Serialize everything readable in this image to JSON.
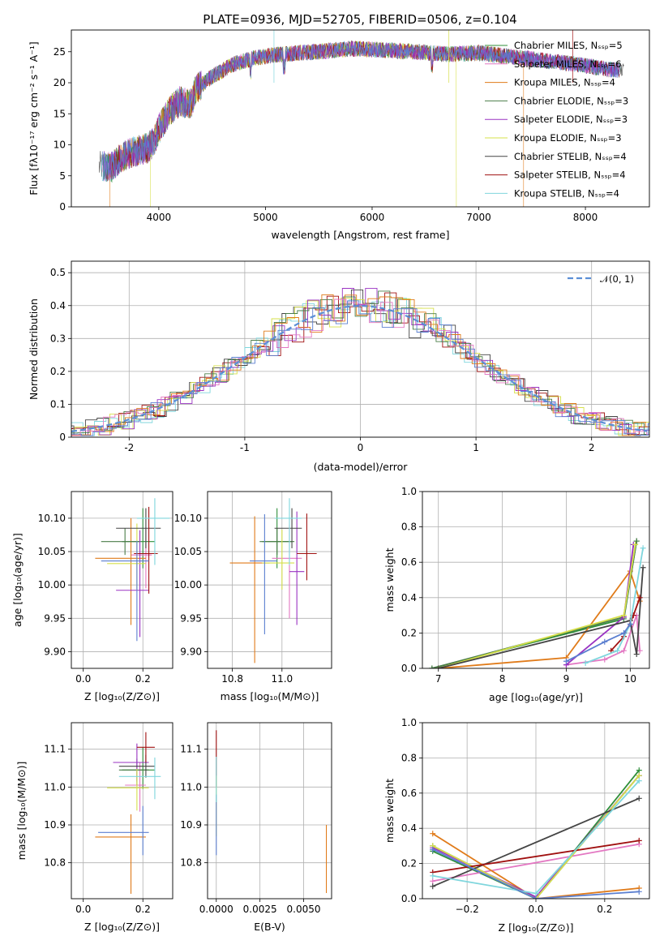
{
  "colors": {
    "Chabrier MILES": "#2f8f3a",
    "Salpeter MILES": "#e377c2",
    "Kroupa MILES": "#e07b1a",
    "Chabrier ELODIE": "#4a7d48",
    "Salpeter ELODIE": "#9a33c2",
    "Kroupa ELODIE": "#d6e04a",
    "Chabrier STELIB": "#444444",
    "Salpeter STELIB": "#a01010",
    "Kroupa STELIB": "#7fd6dd",
    "extra_blue": "#5b7fd0",
    "normal_fit": "#5b8fd6"
  },
  "chart_data": [
    {
      "id": "spectrum",
      "type": "line",
      "title": "PLATE=0936, MJD=52705, FIBERID=0506, z=0.104",
      "xlabel": "wavelength [Angstrom, rest frame]",
      "ylabel": "Flux [fλ10⁻¹⁷ erg cm⁻² s⁻¹ A⁻¹]",
      "xlim": [
        3180,
        8600
      ],
      "ylim": [
        0,
        28.5
      ],
      "xticks": [
        4000,
        5000,
        6000,
        7000,
        8000
      ],
      "yticks": [
        0,
        5,
        10,
        15,
        20,
        25
      ],
      "grid": false,
      "legend_position": "lower-right",
      "legend": [
        "Chabrier MILES, N_SSP=5",
        "Salpeter MILES, N_SSP=6",
        "Kroupa MILES, N_SSP=4",
        "Chabrier ELODIE, N_SSP=3",
        "Salpeter ELODIE, N_SSP=3",
        "Kroupa ELODIE, N_SSP=3",
        "Chabrier STELIB, N_SSP=4",
        "Salpeter STELIB, N_SSP=4",
        "Kroupa STELIB, N_SSP=4"
      ],
      "legend_display": [
        "Chabrier MILES, Nₛₛₚ=5",
        "Salpeter MILES, Nₛₛₚ=6",
        "Kroupa MILES, Nₛₛₚ=4",
        "Chabrier ELODIE, Nₛₛₚ=3",
        "Salpeter ELODIE, Nₛₛₚ=3",
        "Kroupa ELODIE, Nₛₛₚ=3",
        "Chabrier STELIB, Nₛₛₚ=4",
        "Salpeter STELIB, Nₛₛₚ=4",
        "Kroupa STELIB, Nₛₛₚ=4"
      ],
      "continuum_knots": {
        "x": [
          3460,
          3560,
          3640,
          3700,
          3760,
          3840,
          3900,
          3950,
          4000,
          4100,
          4200,
          4300,
          4350,
          4500,
          4700,
          4900,
          5100,
          5300,
          5500,
          5800,
          6100,
          6400,
          6700,
          7000,
          7300,
          7600,
          7900,
          8200,
          8360
        ],
        "y": [
          6.5,
          6.5,
          7.8,
          8.5,
          8.8,
          9.2,
          9.5,
          10.5,
          12.5,
          15.5,
          17.0,
          16.5,
          19.0,
          21.0,
          23.0,
          24.0,
          24.5,
          24.8,
          25.0,
          25.5,
          25.3,
          25.0,
          24.6,
          24.8,
          24.2,
          23.6,
          23.0,
          22.2,
          22.0
        ]
      }
    },
    {
      "id": "residual_histogram",
      "type": "line",
      "xlabel": "(data-model)/error",
      "ylabel": "Normed distribution",
      "xlim": [
        -2.5,
        2.5
      ],
      "ylim": [
        0,
        0.535
      ],
      "xticks": [
        -2,
        -1,
        0,
        1,
        2
      ],
      "yticks": [
        0.0,
        0.1,
        0.2,
        0.3,
        0.4,
        0.5
      ],
      "grid": true,
      "legend": [
        "𝒩(0, 1)"
      ],
      "legend_position": "upper-right",
      "normal_curve": {
        "mean": 0,
        "sigma": 1
      },
      "bin_width": 0.1,
      "series_peak_values": [
        0.5,
        0.51,
        0.49,
        0.48,
        0.47,
        0.46,
        0.51,
        0.45,
        0.49
      ]
    },
    {
      "id": "age_vs_Z",
      "type": "scatter",
      "xlabel": "Z [log₁₀(Z/Z⊙)]",
      "ylabel": "age  [log₁₀(age/yr)]",
      "xlim": [
        -0.04,
        0.3
      ],
      "ylim": [
        9.875,
        10.14
      ],
      "xticks": [
        "0.0",
        "0.2"
      ],
      "yticks": [
        "9.90",
        "9.95",
        "10.00",
        "10.05",
        "10.10"
      ],
      "grid": true,
      "points": [
        {
          "model": "Chabrier MILES",
          "x": 0.2,
          "y": 10.065,
          "xerr": [
            0.07,
            0.04
          ],
          "yerr": [
            0.04,
            0.05
          ]
        },
        {
          "model": "Salpeter MILES",
          "x": 0.21,
          "y": 10.045,
          "xerr": [
            0.05,
            0.02
          ],
          "yerr": [
            0.05,
            0.04
          ]
        },
        {
          "model": "Kroupa MILES",
          "x": 0.16,
          "y": 10.04,
          "xerr": [
            0.12,
            0.05
          ],
          "yerr": [
            0.1,
            0.06
          ]
        },
        {
          "model": "Chabrier ELODIE",
          "x": 0.14,
          "y": 10.065,
          "xerr": [
            0.08,
            0.05
          ],
          "yerr": [
            0.02,
            0.02
          ]
        },
        {
          "model": "Salpeter ELODIE",
          "x": 0.19,
          "y": 9.992,
          "xerr": [
            0.08,
            0.03
          ],
          "yerr": [
            0.07,
            0.09
          ]
        },
        {
          "model": "Kroupa ELODIE",
          "x": 0.18,
          "y": 10.032,
          "xerr": [
            0.1,
            0.03
          ],
          "yerr": [
            0.04,
            0.06
          ]
        },
        {
          "model": "Chabrier STELIB",
          "x": 0.21,
          "y": 10.085,
          "xerr": [
            0.1,
            0.05
          ],
          "yerr": [
            0.03,
            0.03
          ]
        },
        {
          "model": "Salpeter STELIB",
          "x": 0.22,
          "y": 10.047,
          "xerr": [
            0.05,
            0.03
          ],
          "yerr": [
            0.06,
            0.07
          ]
        },
        {
          "model": "Kroupa STELIB",
          "x": 0.24,
          "y": 10.1,
          "xerr": [
            0.06,
            0.05
          ],
          "yerr": [
            0.07,
            0.03
          ]
        },
        {
          "model": "extra_blue",
          "x": 0.18,
          "y": 10.036,
          "xerr": [
            0.12,
            0.04
          ],
          "yerr": [
            0.12,
            0.03
          ]
        }
      ]
    },
    {
      "id": "age_vs_mass",
      "type": "scatter",
      "xlabel": "mass [log₁₀(M/M⊙)]",
      "xlim": [
        10.7,
        11.2
      ],
      "ylim": [
        9.875,
        10.14
      ],
      "xticks": [
        "10.8",
        "11.0"
      ],
      "yticks": [
        "9.90",
        "9.95",
        "10.00",
        "10.05",
        "10.10"
      ],
      "grid": true,
      "points": [
        {
          "model": "Chabrier MILES",
          "x": 10.98,
          "y": 10.065,
          "xerr": [
            0.06,
            0.06
          ],
          "yerr": [
            0.04,
            0.05
          ]
        },
        {
          "model": "Salpeter MILES",
          "x": 11.03,
          "y": 10.04,
          "xerr": [
            0.07,
            0.05
          ],
          "yerr": [
            0.09,
            0.05
          ]
        },
        {
          "model": "Kroupa MILES",
          "x": 10.89,
          "y": 10.033,
          "xerr": [
            0.1,
            0.06
          ],
          "yerr": [
            0.15,
            0.07
          ]
        },
        {
          "model": "Chabrier ELODIE",
          "x": 10.98,
          "y": 10.065,
          "xerr": [
            0.07,
            0.07
          ],
          "yerr": [
            0.02,
            0.02
          ]
        },
        {
          "model": "Salpeter ELODIE",
          "x": 11.06,
          "y": 10.02,
          "xerr": [
            0.03,
            0.03
          ],
          "yerr": [
            0.08,
            0.09
          ]
        },
        {
          "model": "Kroupa ELODIE",
          "x": 11.0,
          "y": 10.033,
          "xerr": [
            0.08,
            0.05
          ],
          "yerr": [
            0.04,
            0.05
          ]
        },
        {
          "model": "Chabrier STELIB",
          "x": 11.04,
          "y": 10.085,
          "xerr": [
            0.07,
            0.04
          ],
          "yerr": [
            0.03,
            0.03
          ]
        },
        {
          "model": "Salpeter STELIB",
          "x": 11.1,
          "y": 10.047,
          "xerr": [
            0.04,
            0.04
          ],
          "yerr": [
            0.04,
            0.06
          ]
        },
        {
          "model": "Kroupa STELIB",
          "x": 11.03,
          "y": 10.1,
          "xerr": [
            0.06,
            0.05
          ],
          "yerr": [
            0.07,
            0.03
          ]
        },
        {
          "model": "extra_blue",
          "x": 10.93,
          "y": 10.036,
          "xerr": [
            0.06,
            0.05
          ],
          "yerr": [
            0.11,
            0.07
          ]
        }
      ]
    },
    {
      "id": "mass_weight_vs_age",
      "type": "line",
      "xlabel": "age  [log₁₀(age/yr)]",
      "ylabel": "mass weight",
      "xlim": [
        6.75,
        10.3
      ],
      "ylim": [
        0.0,
        1.0
      ],
      "xticks": [
        "7",
        "8",
        "9",
        "10"
      ],
      "yticks": [
        "0.0",
        "0.2",
        "0.4",
        "0.6",
        "0.8",
        "1.0"
      ],
      "grid": true,
      "series": [
        {
          "model": "Chabrier MILES",
          "x": [
            6.9,
            9.9,
            10.1
          ],
          "y": [
            0.0,
            0.28,
            0.72
          ]
        },
        {
          "model": "Salpeter MILES",
          "x": [
            9.0,
            9.6,
            9.9,
            10.1,
            10.15
          ],
          "y": [
            0.02,
            0.05,
            0.1,
            0.3,
            0.1
          ]
        },
        {
          "model": "Kroupa MILES",
          "x": [
            7.0,
            9.0,
            10.0,
            10.15
          ],
          "y": [
            0.0,
            0.06,
            0.55,
            0.38
          ]
        },
        {
          "model": "Chabrier ELODIE",
          "x": [
            6.9,
            9.9,
            10.1
          ],
          "y": [
            0.0,
            0.29,
            0.72
          ]
        },
        {
          "model": "Salpeter ELODIE",
          "x": [
            9.0,
            9.9,
            10.05
          ],
          "y": [
            0.02,
            0.29,
            0.7
          ]
        },
        {
          "model": "Kroupa ELODIE",
          "x": [
            7.0,
            9.9,
            10.08
          ],
          "y": [
            0.0,
            0.3,
            0.7
          ]
        },
        {
          "model": "Chabrier STELIB",
          "x": [
            7.0,
            10.0,
            10.1,
            10.2
          ],
          "y": [
            0.0,
            0.27,
            0.08,
            0.57
          ]
        },
        {
          "model": "Salpeter STELIB",
          "x": [
            9.7,
            9.9,
            10.05,
            10.15
          ],
          "y": [
            0.1,
            0.18,
            0.3,
            0.4
          ]
        },
        {
          "model": "Kroupa STELIB",
          "x": [
            9.3,
            9.8,
            10.0,
            10.2
          ],
          "y": [
            0.03,
            0.1,
            0.25,
            0.68
          ]
        },
        {
          "model": "extra_blue",
          "x": [
            9.0,
            9.6,
            9.9,
            10.0
          ],
          "y": [
            0.04,
            0.15,
            0.2,
            0.25
          ]
        }
      ]
    },
    {
      "id": "mass_vs_Z",
      "type": "scatter",
      "xlabel": "Z [log₁₀(Z/Z⊙)]",
      "ylabel": "mass [log₁₀(M/M⊙)]",
      "xlim": [
        -0.04,
        0.3
      ],
      "ylim": [
        10.705,
        11.17
      ],
      "xticks": [
        "0.0",
        "0.2"
      ],
      "yticks": [
        "10.8",
        "10.9",
        "11.0",
        "11.1"
      ],
      "grid": true,
      "points": [
        {
          "model": "Chabrier MILES",
          "x": 0.2,
          "y": 11.045,
          "xerr": [
            0.07,
            0.04
          ],
          "yerr": [
            0.05,
            0.06
          ]
        },
        {
          "model": "Salpeter MILES",
          "x": 0.19,
          "y": 11.005,
          "xerr": [
            0.05,
            0.02
          ],
          "yerr": [
            0.07,
            0.06
          ]
        },
        {
          "model": "Kroupa MILES",
          "x": 0.16,
          "y": 10.868,
          "xerr": [
            0.12,
            0.05
          ],
          "yerr": [
            0.15,
            0.06
          ]
        },
        {
          "model": "Chabrier ELODIE",
          "x": 0.18,
          "y": 11.045,
          "xerr": [
            0.06,
            0.04
          ],
          "yerr": [
            0.04,
            0.03
          ]
        },
        {
          "model": "Salpeter ELODIE",
          "x": 0.18,
          "y": 11.065,
          "xerr": [
            0.08,
            0.04
          ],
          "yerr": [
            0.05,
            0.05
          ]
        },
        {
          "model": "Kroupa ELODIE",
          "x": 0.18,
          "y": 10.998,
          "xerr": [
            0.1,
            0.04
          ],
          "yerr": [
            0.06,
            0.05
          ]
        },
        {
          "model": "Chabrier STELIB",
          "x": 0.21,
          "y": 11.055,
          "xerr": [
            0.09,
            0.03
          ],
          "yerr": [
            0.03,
            0.03
          ]
        },
        {
          "model": "Salpeter STELIB",
          "x": 0.21,
          "y": 11.105,
          "xerr": [
            0.03,
            0.03
          ],
          "yerr": [
            0.04,
            0.04
          ]
        },
        {
          "model": "Kroupa STELIB",
          "x": 0.24,
          "y": 11.028,
          "xerr": [
            0.12,
            0.02
          ],
          "yerr": [
            0.06,
            0.05
          ]
        },
        {
          "model": "extra_blue",
          "x": 0.2,
          "y": 10.88,
          "xerr": [
            0.15,
            0.02
          ],
          "yerr": [
            0.06,
            0.07
          ]
        }
      ]
    },
    {
      "id": "mass_vs_ebv",
      "type": "scatter",
      "xlabel": "E(B-V)",
      "xlim": [
        -0.0005,
        0.0066
      ],
      "ylim": [
        10.705,
        11.17
      ],
      "xticks": [
        "0.0000",
        "0.0025",
        "0.0050"
      ],
      "yticks": [
        "10.8",
        "10.9",
        "11.0",
        "11.1"
      ],
      "grid": true,
      "points": [
        {
          "model": "Salpeter STELIB",
          "x": 0.0,
          "y": 11.05,
          "xerr": [
            0,
            0
          ],
          "yerr": [
            0.05,
            0.1
          ]
        },
        {
          "model": "Kroupa ELODIE",
          "x": 0.0,
          "y": 10.95,
          "xerr": [
            0,
            0
          ],
          "yerr": [
            0.08,
            0.08
          ]
        },
        {
          "model": "extra_blue",
          "x": 0.0,
          "y": 10.88,
          "xerr": [
            0,
            0
          ],
          "yerr": [
            0.06,
            0.1
          ]
        },
        {
          "model": "Kroupa STELIB",
          "x": 0.0,
          "y": 11.03,
          "xerr": [
            0,
            0
          ],
          "yerr": [
            0.07,
            0.05
          ]
        },
        {
          "model": "Kroupa MILES",
          "x": 0.0063,
          "y": 10.81,
          "xerr": [
            0,
            0
          ],
          "yerr": [
            0.09,
            0.09
          ]
        }
      ]
    },
    {
      "id": "mass_weight_vs_Z",
      "type": "line",
      "xlabel": "Z [log₁₀(Z/Z⊙)]",
      "ylabel": "mass weight",
      "xlim": [
        -0.33,
        0.33
      ],
      "ylim": [
        0.0,
        1.0
      ],
      "xticks": [
        "−0.2",
        "0.0",
        "0.2"
      ],
      "yticks": [
        "0.0",
        "0.2",
        "0.4",
        "0.6",
        "0.8",
        "1.0"
      ],
      "grid": true,
      "series": [
        {
          "model": "Chabrier MILES",
          "x": [
            -0.3,
            0.0,
            0.3
          ],
          "y": [
            0.27,
            0.0,
            0.73
          ]
        },
        {
          "model": "Salpeter MILES",
          "x": [
            -0.3,
            0.3
          ],
          "y": [
            0.1,
            0.31
          ]
        },
        {
          "model": "Kroupa MILES",
          "x": [
            -0.3,
            0.0,
            0.3
          ],
          "y": [
            0.37,
            0.0,
            0.06
          ]
        },
        {
          "model": "Chabrier ELODIE",
          "x": [
            -0.3,
            0.0,
            0.3
          ],
          "y": [
            0.3,
            0.0,
            0.7
          ]
        },
        {
          "model": "Salpeter ELODIE",
          "x": [
            -0.3,
            0.0,
            0.3
          ],
          "y": [
            0.29,
            0.01,
            0.7
          ]
        },
        {
          "model": "Kroupa ELODIE",
          "x": [
            -0.3,
            0.0,
            0.3
          ],
          "y": [
            0.3,
            0.0,
            0.7
          ]
        },
        {
          "model": "Chabrier STELIB",
          "x": [
            -0.3,
            0.3
          ],
          "y": [
            0.07,
            0.57
          ]
        },
        {
          "model": "Salpeter STELIB",
          "x": [
            -0.3,
            0.3
          ],
          "y": [
            0.15,
            0.33
          ]
        },
        {
          "model": "Kroupa STELIB",
          "x": [
            -0.3,
            0.0,
            0.3
          ],
          "y": [
            0.13,
            0.03,
            0.67
          ]
        },
        {
          "model": "extra_blue",
          "x": [
            -0.3,
            0.0,
            0.3
          ],
          "y": [
            0.28,
            0.0,
            0.04
          ]
        }
      ]
    }
  ]
}
